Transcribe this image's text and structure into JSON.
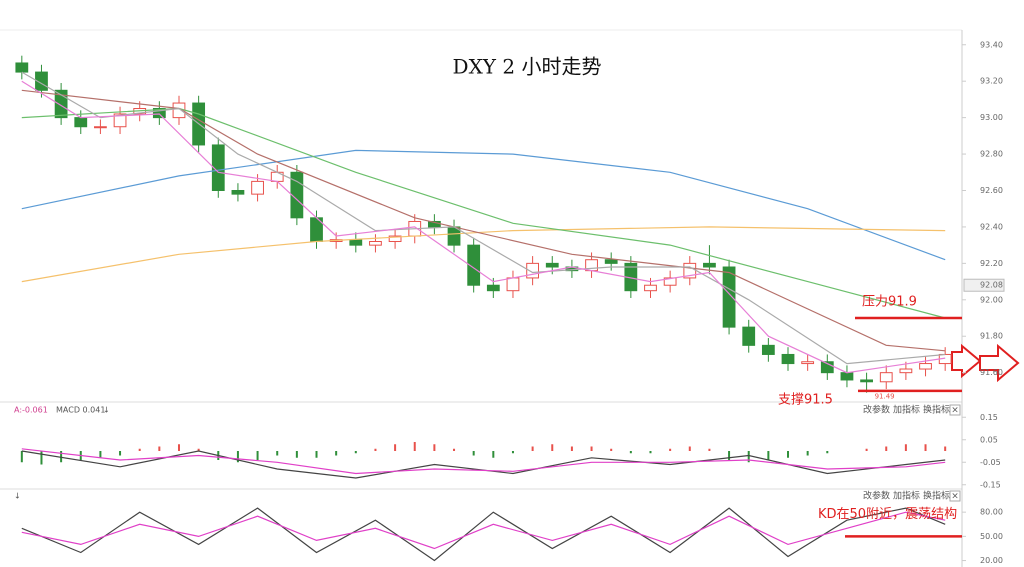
{
  "chart_data": [
    {
      "type": "candlestick",
      "title": "DXY 2 小时走势",
      "ylim": [
        91.45,
        93.47
      ],
      "yticks": [
        {
          "value": 93.4,
          "label": "93.40"
        },
        {
          "value": 93.2,
          "label": "93.20"
        },
        {
          "value": 93.0,
          "label": "93.00"
        },
        {
          "value": 92.8,
          "label": "92.80"
        },
        {
          "value": 92.6,
          "label": "92.60"
        },
        {
          "value": 92.4,
          "label": "92.40"
        },
        {
          "value": 92.2,
          "label": "92.20"
        },
        {
          "value": 92.0,
          "label": "92.00"
        },
        {
          "value": 91.8,
          "label": "91.80"
        },
        {
          "value": 91.6,
          "label": "91.60"
        }
      ],
      "price_marker": {
        "value": 92.08,
        "label": "92.08"
      },
      "up_color": "#e8514b",
      "down_color": "#2f8f3a",
      "candles": {
        "open": [
          93.3,
          93.25,
          93.15,
          93.0,
          92.95,
          92.95,
          93.02,
          93.05,
          93.0,
          93.08,
          92.85,
          92.6,
          92.58,
          92.65,
          92.7,
          92.45,
          92.32,
          92.33,
          92.3,
          92.32,
          92.35,
          92.43,
          92.4,
          92.3,
          92.08,
          92.05,
          92.12,
          92.2,
          92.18,
          92.16,
          92.22,
          92.2,
          92.05,
          92.08,
          92.12,
          92.2,
          92.18,
          91.85,
          91.75,
          91.7,
          91.65,
          91.66,
          91.6,
          91.56,
          91.55,
          91.6,
          91.62,
          91.65
        ],
        "high": [
          93.34,
          93.29,
          93.19,
          93.04,
          92.99,
          93.06,
          93.09,
          93.09,
          93.12,
          93.12,
          92.89,
          92.64,
          92.69,
          92.74,
          92.74,
          92.49,
          92.37,
          92.37,
          92.36,
          92.39,
          92.47,
          92.47,
          92.44,
          92.34,
          92.12,
          92.16,
          92.24,
          92.24,
          92.22,
          92.26,
          92.26,
          92.24,
          92.12,
          92.16,
          92.24,
          92.3,
          92.22,
          91.89,
          91.79,
          91.74,
          91.7,
          91.7,
          91.64,
          91.6,
          91.64,
          91.66,
          91.69,
          91.74
        ],
        "low": [
          93.21,
          93.11,
          92.96,
          92.91,
          92.91,
          92.91,
          92.98,
          92.96,
          92.96,
          92.81,
          92.56,
          92.54,
          92.54,
          92.61,
          92.41,
          92.28,
          92.28,
          92.26,
          92.26,
          92.28,
          92.31,
          92.36,
          92.26,
          92.04,
          92.01,
          92.01,
          92.08,
          92.14,
          92.12,
          92.12,
          92.16,
          92.01,
          92.01,
          92.04,
          92.08,
          92.14,
          91.81,
          91.71,
          91.66,
          91.61,
          91.61,
          91.56,
          91.52,
          91.49,
          91.51,
          91.56,
          91.58,
          91.61
        ],
        "close": [
          93.25,
          93.15,
          93.0,
          92.95,
          92.95,
          93.02,
          93.05,
          93.0,
          93.08,
          92.85,
          92.6,
          92.58,
          92.65,
          92.7,
          92.45,
          92.32,
          92.33,
          92.3,
          92.32,
          92.35,
          92.43,
          92.4,
          92.3,
          92.08,
          92.05,
          92.12,
          92.2,
          92.18,
          92.16,
          92.22,
          92.2,
          92.05,
          92.08,
          92.12,
          92.2,
          92.18,
          91.85,
          91.75,
          91.7,
          91.65,
          91.66,
          91.6,
          91.56,
          91.55,
          91.6,
          91.62,
          91.65,
          91.7
        ]
      },
      "series": [
        {
          "color": "#5b9bd5",
          "x": [
            0,
            8,
            17,
            25,
            33,
            40,
            47
          ],
          "values": [
            92.5,
            92.68,
            92.82,
            92.8,
            92.7,
            92.5,
            92.22
          ]
        },
        {
          "color": "#f5c16c",
          "x": [
            0,
            8,
            15,
            25,
            35,
            47
          ],
          "values": [
            92.1,
            92.25,
            92.32,
            92.38,
            92.4,
            92.38
          ]
        },
        {
          "color": "#6cbf6c",
          "x": [
            0,
            8,
            9,
            17,
            25,
            33,
            40,
            47
          ],
          "values": [
            93.0,
            93.05,
            93.02,
            92.7,
            92.42,
            92.3,
            92.1,
            91.9
          ]
        },
        {
          "color": "#b5706a",
          "x": [
            0,
            8,
            12,
            20,
            28,
            36,
            44,
            47
          ],
          "values": [
            93.15,
            93.05,
            92.8,
            92.45,
            92.25,
            92.15,
            91.75,
            91.72
          ]
        },
        {
          "color": "#aaaaaa",
          "x": [
            0,
            4,
            8,
            11,
            14,
            18,
            22,
            26,
            30,
            34,
            37,
            42,
            47
          ],
          "values": [
            93.25,
            93.0,
            93.05,
            92.8,
            92.65,
            92.38,
            92.4,
            92.15,
            92.18,
            92.18,
            92.0,
            91.65,
            91.7
          ]
        },
        {
          "color": "#e77fd6",
          "x": [
            0,
            3,
            7,
            10,
            13,
            16,
            20,
            24,
            28,
            32,
            35,
            38,
            42,
            47
          ],
          "values": [
            93.2,
            93.0,
            93.02,
            92.7,
            92.65,
            92.35,
            92.4,
            92.1,
            92.18,
            92.1,
            92.15,
            91.8,
            91.6,
            91.68
          ]
        }
      ],
      "annotations": [
        {
          "text": "压力91.9",
          "value": 91.9
        },
        {
          "text": "支撑91.5",
          "value": 91.5
        }
      ],
      "low_label": {
        "value": 91.49,
        "label": "91.49"
      }
    },
    {
      "type": "bar",
      "legend": [
        "A:-0.061",
        "MACD 0.041",
        "↓"
      ],
      "toolbar": [
        "改参数",
        "加指标",
        "换指标",
        "×"
      ],
      "ylim": [
        -0.16,
        0.2
      ],
      "yticks": [
        0.15,
        0.05,
        -0.05,
        -0.15
      ],
      "up_color": "#e8514b",
      "down_color": "#2f8f3a",
      "values": [
        -0.05,
        -0.06,
        -0.05,
        -0.04,
        -0.03,
        -0.02,
        0.01,
        0.02,
        0.03,
        0.01,
        -0.04,
        -0.05,
        -0.04,
        -0.02,
        -0.03,
        -0.03,
        -0.02,
        -0.01,
        0.01,
        0.03,
        0.04,
        0.03,
        0.01,
        -0.02,
        -0.03,
        -0.01,
        0.02,
        0.03,
        0.02,
        0.02,
        0.01,
        -0.01,
        -0.01,
        0.01,
        0.02,
        0.01,
        -0.04,
        -0.05,
        -0.04,
        -0.03,
        -0.02,
        -0.01,
        0.0,
        0.01,
        0.02,
        0.03,
        0.03,
        0.02
      ],
      "series": [
        {
          "color": "#444444",
          "x": [
            0,
            5,
            9,
            13,
            17,
            21,
            25,
            29,
            33,
            37,
            41,
            45,
            47
          ],
          "values": [
            0.0,
            -0.07,
            0.0,
            -0.08,
            -0.12,
            -0.06,
            -0.1,
            -0.03,
            -0.06,
            -0.02,
            -0.1,
            -0.06,
            -0.04
          ]
        },
        {
          "color": "#e040c8",
          "x": [
            0,
            5,
            9,
            13,
            17,
            21,
            25,
            29,
            33,
            37,
            41,
            45,
            47
          ],
          "values": [
            0.01,
            -0.04,
            -0.02,
            -0.05,
            -0.1,
            -0.08,
            -0.09,
            -0.05,
            -0.05,
            -0.04,
            -0.08,
            -0.07,
            -0.05
          ]
        }
      ]
    },
    {
      "type": "line",
      "legend": [
        "↓"
      ],
      "toolbar": [
        "改参数",
        "加指标",
        "换指标",
        "×"
      ],
      "ylim": [
        12,
        105
      ],
      "yticks": [
        {
          "value": 80,
          "label": "80.00"
        },
        {
          "value": 50,
          "label": "50.00"
        },
        {
          "value": 20,
          "label": "20.00"
        }
      ],
      "series": [
        {
          "color": "#444444",
          "x": [
            0,
            3,
            6,
            9,
            12,
            15,
            18,
            21,
            24,
            27,
            30,
            33,
            36,
            39,
            42,
            45,
            47
          ],
          "values": [
            60,
            30,
            80,
            40,
            85,
            30,
            70,
            20,
            80,
            35,
            75,
            30,
            85,
            25,
            70,
            85,
            65
          ]
        },
        {
          "color": "#e040c8",
          "x": [
            0,
            3,
            6,
            9,
            12,
            15,
            18,
            21,
            24,
            27,
            30,
            33,
            36,
            39,
            42,
            45,
            47
          ],
          "values": [
            55,
            40,
            65,
            50,
            75,
            45,
            60,
            35,
            65,
            45,
            65,
            40,
            75,
            40,
            60,
            80,
            70
          ]
        }
      ],
      "annotations": [
        {
          "text": "KD在50附近，震荡结构",
          "value": 50
        }
      ]
    }
  ]
}
